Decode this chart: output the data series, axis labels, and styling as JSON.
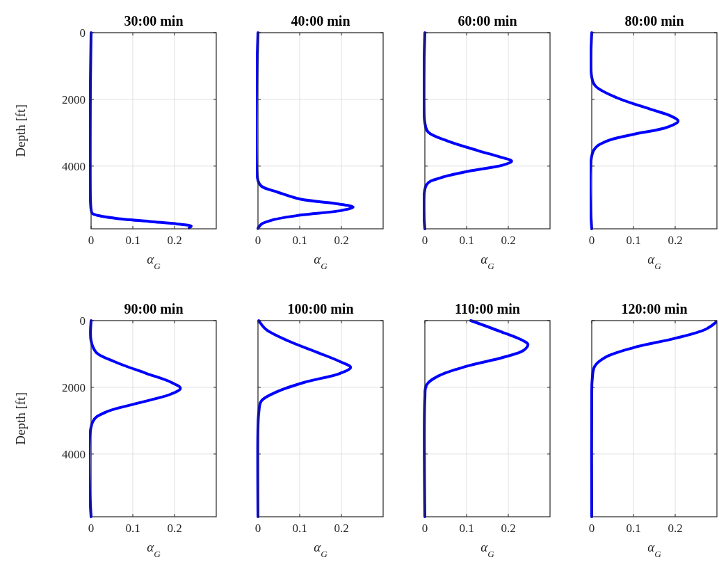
{
  "chart_data": [
    {
      "type": "line",
      "title": "30:00 min",
      "xlabel": "α$_{G}$",
      "ylabel": "Depth [ft]",
      "xlim": [
        0,
        0.3
      ],
      "xticks": [
        0,
        0.1,
        0.2
      ],
      "ylim": [
        5880,
        0
      ],
      "yticks": [
        0,
        2000,
        4000
      ],
      "grid": true,
      "series": [
        {
          "color": "#0000ff",
          "x": [
            0,
            0,
            0.003,
            0.02,
            0.056,
            0.14,
            0.21,
            0.24,
            0.235
          ],
          "values": [
            0,
            5300,
            5420,
            5490,
            5560,
            5660,
            5740,
            5800,
            5850
          ]
        }
      ]
    },
    {
      "type": "line",
      "title": "40:00 min",
      "xlabel": "α$_{G}$",
      "xlim": [
        0,
        0.3
      ],
      "xticks": [
        0,
        0.1,
        0.2
      ],
      "ylim": [
        5880,
        0
      ],
      "yticks": [
        0,
        2000,
        4000
      ],
      "grid": true,
      "tick_labels": "x",
      "series": [
        {
          "color": "#0000ff",
          "x": [
            0,
            0,
            0.008,
            0.047,
            0.101,
            0.184,
            0.228,
            0.2,
            0.101,
            0.036,
            0.008,
            0
          ],
          "values": [
            0,
            4430,
            4600,
            4780,
            4990,
            5120,
            5230,
            5330,
            5470,
            5610,
            5740,
            5870
          ]
        }
      ]
    },
    {
      "type": "line",
      "title": "60:00 min",
      "xlabel": "α$_{G}$",
      "xlim": [
        0,
        0.3
      ],
      "xticks": [
        0,
        0.1,
        0.2
      ],
      "ylim": [
        5880,
        0
      ],
      "yticks": [
        0,
        2000,
        4000
      ],
      "grid": true,
      "tick_labels": "x",
      "series": [
        {
          "color": "#0000ff",
          "x": [
            0,
            0,
            0.008,
            0.055,
            0.126,
            0.181,
            0.208,
            0.187,
            0.11,
            0.038,
            0.004,
            0
          ],
          "values": [
            0,
            2700,
            2980,
            3250,
            3530,
            3730,
            3850,
            3970,
            4140,
            4350,
            4560,
            5880
          ]
        }
      ]
    },
    {
      "type": "line",
      "title": "80:00 min",
      "xlabel": "α$_{G}$",
      "xlim": [
        0,
        0.3
      ],
      "xticks": [
        0,
        0.1,
        0.2
      ],
      "ylim": [
        5880,
        0
      ],
      "yticks": [
        0,
        2000,
        4000
      ],
      "grid": true,
      "tick_labels": "x",
      "series": [
        {
          "color": "#0000ff",
          "x": [
            0,
            0,
            0.009,
            0.06,
            0.14,
            0.19,
            0.207,
            0.18,
            0.099,
            0.034,
            0.004,
            0
          ],
          "values": [
            0,
            1330,
            1600,
            1950,
            2290,
            2500,
            2650,
            2840,
            3050,
            3260,
            3540,
            5880
          ]
        }
      ]
    },
    {
      "type": "line",
      "title": "90:00 min",
      "xlabel": "α$_{G}$",
      "ylabel": "Depth [ft]",
      "xlim": [
        0,
        0.3
      ],
      "xticks": [
        0,
        0.1,
        0.2
      ],
      "ylim": [
        5880,
        0
      ],
      "yticks": [
        0,
        2000,
        4000
      ],
      "grid": true,
      "series": [
        {
          "color": "#0000ff",
          "x": [
            0,
            0,
            0.0125,
            0.056,
            0.132,
            0.192,
            0.214,
            0.192,
            0.11,
            0.034,
            0.004,
            0
          ],
          "values": [
            0,
            610,
            955,
            1230,
            1580,
            1850,
            2030,
            2200,
            2480,
            2750,
            3030,
            5880
          ]
        }
      ]
    },
    {
      "type": "line",
      "title": "100:00 min",
      "xlabel": "α$_{G}$",
      "xlim": [
        0,
        0.3
      ],
      "xticks": [
        0,
        0.1,
        0.2
      ],
      "ylim": [
        5880,
        0
      ],
      "yticks": [
        0,
        2000,
        4000
      ],
      "grid": true,
      "tick_labels": "x",
      "series": [
        {
          "color": "#0000ff",
          "x": [
            0.002,
            0.019,
            0.073,
            0.143,
            0.197,
            0.222,
            0.197,
            0.111,
            0.046,
            0.008,
            0.002,
            0,
            0
          ],
          "values": [
            0,
            260,
            610,
            955,
            1230,
            1400,
            1580,
            1850,
            2130,
            2410,
            2750,
            3200,
            5880
          ]
        }
      ]
    },
    {
      "type": "line",
      "title": "110:00 min",
      "xlabel": "α$_{G}$",
      "xlim": [
        0,
        0.3
      ],
      "xticks": [
        0,
        0.1,
        0.2
      ],
      "ylim": [
        5880,
        0
      ],
      "yticks": [
        0,
        2000,
        4000
      ],
      "grid": true,
      "tick_labels": "x",
      "series": [
        {
          "color": "#0000ff",
          "x": [
            0.11,
            0.182,
            0.237,
            0.247,
            0.237,
            0.188,
            0.1,
            0.034,
            0.004,
            0,
            0
          ],
          "values": [
            0,
            330,
            610,
            710,
            890,
            1100,
            1370,
            1650,
            1930,
            2350,
            5880
          ]
        }
      ]
    },
    {
      "type": "line",
      "title": "120:00 min",
      "xlabel": "α$_{G}$",
      "xlim": [
        0,
        0.3
      ],
      "xticks": [
        0,
        0.1,
        0.2
      ],
      "ylim": [
        5880,
        0
      ],
      "yticks": [
        0,
        2000,
        4000
      ],
      "grid": true,
      "tick_labels": "x",
      "series": [
        {
          "color": "#0000ff",
          "x": [
            0.298,
            0.273,
            0.2,
            0.1,
            0.034,
            0.007,
            0.001,
            0,
            0
          ],
          "values": [
            50,
            260,
            530,
            810,
            1090,
            1370,
            1780,
            2200,
            5880
          ]
        }
      ]
    }
  ]
}
